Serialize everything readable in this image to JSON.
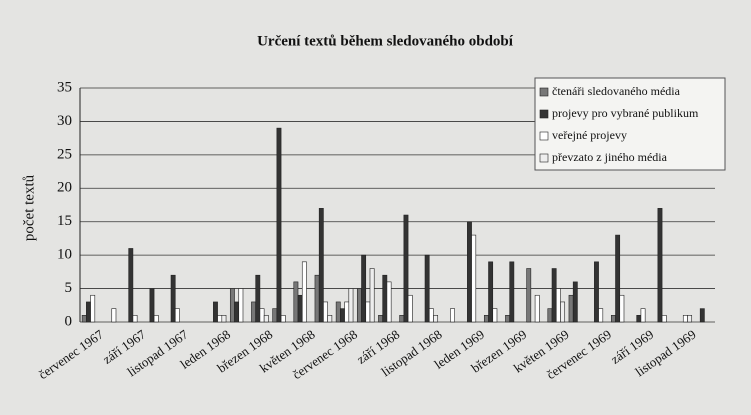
{
  "chart_data": {
    "type": "bar",
    "title": "Určení textů během sledovaného období",
    "y_label": "počet textů",
    "categories": [
      "červenec 1967",
      null,
      "září 1967",
      null,
      "listopad 1967",
      null,
      "leden 1968",
      null,
      "březen 1968",
      null,
      "květen 1968",
      null,
      "červenec 1968",
      null,
      "září 1968",
      null,
      "listopad 1968",
      null,
      "leden 1969",
      null,
      "březen 1969",
      null,
      "květen 1969",
      null,
      "červenec 1969",
      null,
      "září 1969",
      null,
      "listopad 1969",
      null
    ],
    "series": [
      {
        "name": "čtenáři sledovaného média",
        "color": "#777777",
        "values": [
          1,
          0,
          0,
          0,
          0,
          0,
          0,
          5,
          3,
          2,
          6,
          7,
          3,
          5,
          1,
          1,
          0,
          0,
          0,
          1,
          1,
          8,
          2,
          4,
          0,
          1,
          0,
          0,
          0,
          0
        ]
      },
      {
        "name": "projevy pro vybrané publikum",
        "color": "#333333",
        "values": [
          3,
          0,
          11,
          5,
          7,
          0,
          3,
          3,
          7,
          29,
          4,
          17,
          2,
          10,
          7,
          16,
          10,
          0,
          15,
          9,
          9,
          0,
          8,
          6,
          9,
          13,
          1,
          17,
          0,
          2
        ]
      },
      {
        "name": "veřejné projevy",
        "color": "#ffffff",
        "values": [
          4,
          2,
          1,
          1,
          2,
          0,
          1,
          5,
          2,
          1,
          9,
          3,
          3,
          3,
          6,
          4,
          2,
          2,
          13,
          2,
          0,
          4,
          5,
          0,
          2,
          4,
          2,
          1,
          1,
          0
        ]
      },
      {
        "name": "převzato z jiného média",
        "color": "#eeeeee",
        "values": [
          0,
          0,
          0,
          0,
          0,
          0,
          1,
          0,
          1,
          0,
          0,
          1,
          5,
          8,
          0,
          0,
          1,
          0,
          0,
          0,
          0,
          0,
          3,
          0,
          0,
          0,
          0,
          0,
          1,
          0
        ]
      }
    ],
    "ylim": [
      0,
      35
    ],
    "yticks": [
      0,
      5,
      10,
      15,
      20,
      25,
      30,
      35
    ],
    "grid": true,
    "legend": "top-right"
  }
}
